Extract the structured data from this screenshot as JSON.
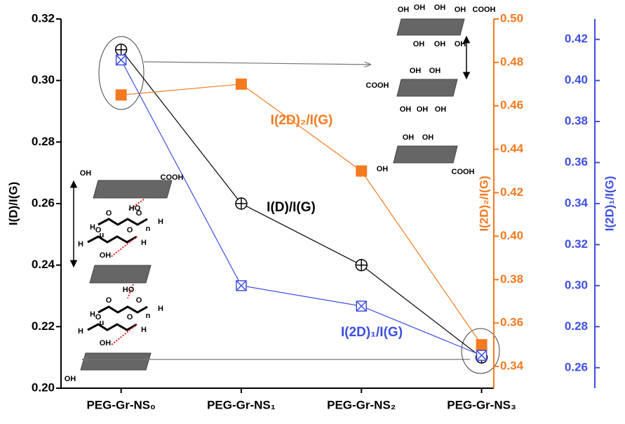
{
  "chart_data": {
    "type": "line",
    "categories": [
      "PEG-Gr-NS₀",
      "PEG-Gr-NS₁",
      "PEG-Gr-NS₂",
      "PEG-Gr-NS₃"
    ],
    "ylabel": "I(D)/I(G)",
    "y2label": "I(2D)₂/I(G)",
    "y3label": "I(2D)₁/I(G)",
    "ylim": [
      0.2,
      0.32
    ],
    "yticks": [
      {
        "value": 0.2,
        "label": "0.20"
      },
      0.22,
      0.24,
      0.26,
      0.28,
      {
        "value": 0.3,
        "label": "0.30"
      },
      0.32
    ],
    "y2lim": [
      0.33,
      0.5
    ],
    "y2ticks": [
      0.34,
      0.36,
      0.38,
      {
        "value": 0.4,
        "label": "0.40"
      },
      0.42,
      0.44,
      0.46,
      0.48,
      {
        "value": 0.5,
        "label": "0.50"
      }
    ],
    "y3lim": [
      0.25,
      0.43
    ],
    "y3ticks": [
      0.26,
      0.28,
      {
        "value": 0.3,
        "label": "0.30"
      },
      0.32,
      0.34,
      0.36,
      0.38,
      {
        "value": 0.4,
        "label": "0.40"
      },
      0.42
    ],
    "series": [
      {
        "name": "I(D)/I(G)",
        "color": "#000000",
        "axis": "y",
        "values": [
          0.31,
          0.26,
          0.24,
          0.21
        ]
      },
      {
        "name": "I(2D)₂/I(G)",
        "color": "#f47a20",
        "axis": "y2",
        "values": [
          0.465,
          0.47,
          0.43,
          0.35
        ]
      },
      {
        "name": "I(2D)₁/I(G)",
        "color": "#3d4fe0",
        "axis": "y3",
        "values": [
          0.41,
          0.3,
          0.29,
          0.266
        ]
      }
    ],
    "annotations": [
      "OH",
      "OH",
      "OH",
      "OH",
      "COOH",
      "OH",
      "OH",
      "OH",
      "OH",
      "OH",
      "COOH",
      "OH",
      "OH",
      "OH",
      "OH",
      "OH",
      "OH",
      "COOH",
      "OH",
      "COOH",
      "HO",
      "H",
      "O",
      "O",
      "n",
      "H",
      "H",
      "O",
      "O",
      "u",
      "H",
      "OH",
      "HO",
      "H",
      "O",
      "O",
      "n",
      "H",
      "H",
      "O",
      "O",
      "u",
      "H",
      "OH",
      "OH"
    ]
  }
}
